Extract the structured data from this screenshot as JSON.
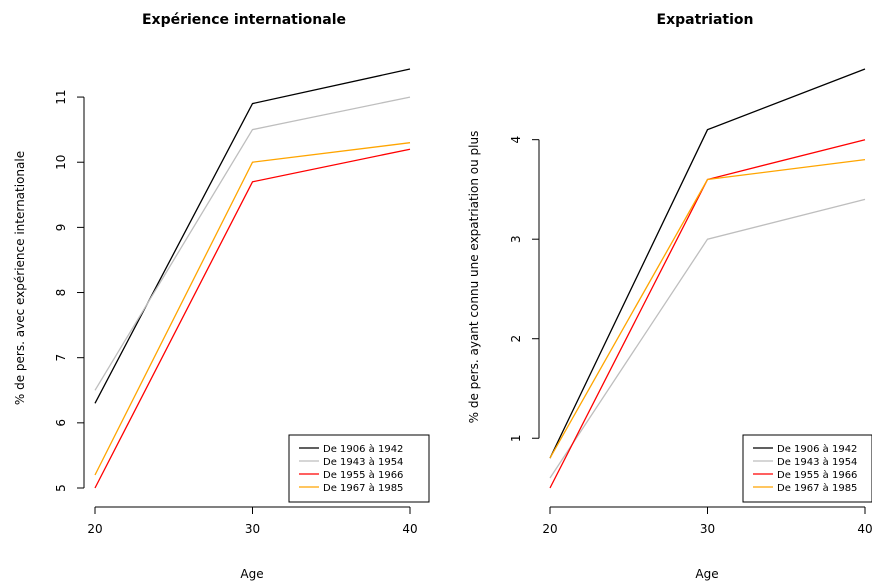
{
  "chart_data": [
    {
      "type": "line",
      "title": "Expérience internationale",
      "xlabel": "Age",
      "ylabel": "% de pers. avec expérience internationale",
      "x": [
        20,
        30,
        40
      ],
      "xlim": [
        20,
        40
      ],
      "ylim": [
        5,
        11.4
      ],
      "xticks": [
        "20",
        "30",
        "40"
      ],
      "yticks": [
        "5",
        "6",
        "7",
        "8",
        "9",
        "10",
        "11"
      ],
      "legend_position": "bottom-right",
      "series": [
        {
          "name": "De 1906 à 1942",
          "color": "#000000",
          "values": [
            6.3,
            10.9,
            11.43
          ]
        },
        {
          "name": "De 1943 à 1954",
          "color": "#bebebe",
          "values": [
            6.5,
            10.5,
            11.0
          ]
        },
        {
          "name": "De 1955 à 1966",
          "color": "#ff0000",
          "values": [
            5.0,
            9.7,
            10.2
          ]
        },
        {
          "name": "De 1967 à 1985",
          "color": "#ffa500",
          "values": [
            5.2,
            10.0,
            10.3
          ]
        }
      ]
    },
    {
      "type": "line",
      "title": "Expatriation",
      "xlabel": "Age",
      "ylabel": "% de pers. ayant connu une expatriation ou plus",
      "x": [
        20,
        30,
        40
      ],
      "xlim": [
        20,
        40
      ],
      "ylim": [
        0.5,
        4.7
      ],
      "xticks": [
        "20",
        "30",
        "40"
      ],
      "yticks": [
        "1",
        "2",
        "3",
        "4"
      ],
      "legend_position": "bottom-right",
      "series": [
        {
          "name": "De 1906 à 1942",
          "color": "#000000",
          "values": [
            0.8,
            4.1,
            4.71
          ]
        },
        {
          "name": "De 1943 à 1954",
          "color": "#bebebe",
          "values": [
            0.6,
            3.0,
            3.4
          ]
        },
        {
          "name": "De 1955 à 1966",
          "color": "#ff0000",
          "values": [
            0.5,
            3.6,
            4.0
          ]
        },
        {
          "name": "De 1967 à 1985",
          "color": "#ffa500",
          "values": [
            0.8,
            3.6,
            3.8
          ]
        }
      ]
    }
  ]
}
